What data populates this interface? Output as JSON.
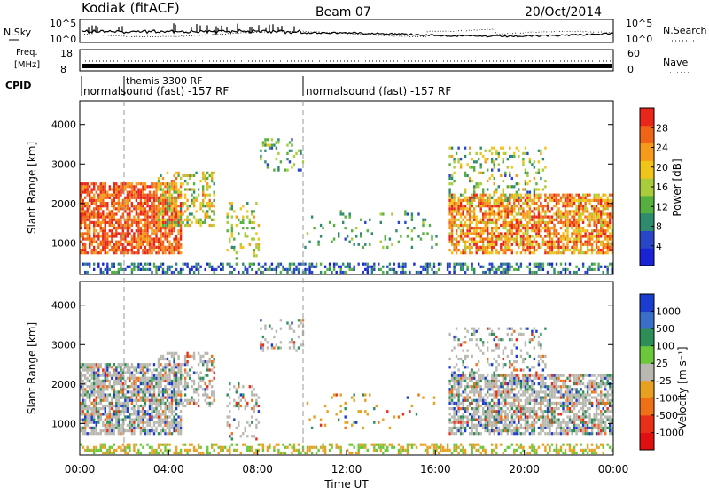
{
  "header": {
    "station": "Kodiak (fitACF)",
    "beam": "Beam 07",
    "date": "20/Oct/2014"
  },
  "top_panels": {
    "nsky_label": "N.Sky",
    "nsky_ticks": [
      "10^5",
      "10^0"
    ],
    "nsearch_label": "N.Search",
    "nsearch_ticks": [
      "10^5",
      "10^0"
    ],
    "freq_label_1": "Freq.",
    "freq_label_2": "[MHz]",
    "freq_ticks": [
      "18",
      "8"
    ],
    "nave_label": "Nave",
    "nave_ticks": [
      "60",
      "0"
    ],
    "cpid_label": "CPID",
    "cpid_segments": [
      {
        "label": "normalsound (fast) -157 RF"
      },
      {
        "label": "themis 3300 RF"
      },
      {
        "label": "normalsound (fast) -157 RF"
      }
    ]
  },
  "chart_data": [
    {
      "type": "heatmap",
      "title": "",
      "xlabel": "",
      "ylabel": "Slant Range [km]",
      "xlim": [
        0,
        24
      ],
      "ylim": [
        200,
        4600
      ],
      "yticks": [
        "1000",
        "2000",
        "3000",
        "4000"
      ],
      "colorbar": {
        "label": "Power [dB]",
        "ticks": [
          "4",
          "8",
          "12",
          "16",
          "20",
          "24",
          "28"
        ],
        "colors": [
          "#1a22d6",
          "#2a46c8",
          "#2e8b6e",
          "#55b040",
          "#a8cc3a",
          "#f0c419",
          "#f59a1a",
          "#f06418",
          "#e8261a"
        ],
        "range": [
          0,
          30
        ]
      }
    },
    {
      "type": "heatmap",
      "title": "",
      "xlabel": "Time UT",
      "ylabel": "Slant Range [km]",
      "xlim": [
        0,
        24
      ],
      "ylim": [
        200,
        4600
      ],
      "yticks": [
        "1000",
        "2000",
        "3000",
        "4000"
      ],
      "xticks": [
        "00:00",
        "04:00",
        "08:00",
        "12:00",
        "16:00",
        "20:00",
        "00:00"
      ],
      "colorbar": {
        "label": "Velocity [m s⁻¹]",
        "ticks": [
          "1000",
          "500",
          "100",
          "25",
          "-25",
          "-100",
          "-500",
          "-1000"
        ],
        "colors": [
          "#1a3ccf",
          "#3a6ec8",
          "#2e8e58",
          "#6ac83a",
          "#b8b8b0",
          "#e8a020",
          "#f07018",
          "#e83018",
          "#e01010"
        ],
        "range": [
          -1000,
          1000
        ]
      }
    }
  ]
}
